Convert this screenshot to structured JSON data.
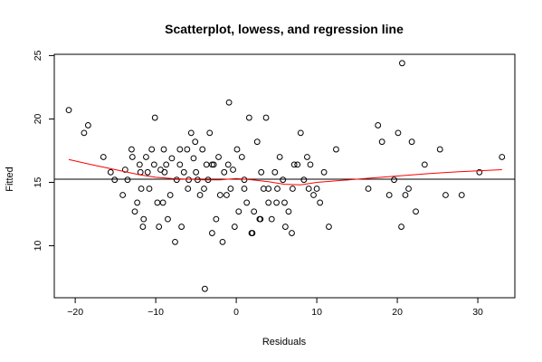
{
  "chart_data": {
    "type": "scatter",
    "title": "Scatterplot, lowess, and regression line",
    "xlabel": "Residuals",
    "ylabel": "Fitted",
    "xlim": [
      -22.6,
      34.6
    ],
    "ylim": [
      5.9,
      25.1
    ],
    "xticks": [
      -20,
      -10,
      0,
      10,
      20,
      30
    ],
    "yticks": [
      10,
      15,
      20,
      25
    ],
    "xtick_labels": [
      "−20",
      "−10",
      "0",
      "10",
      "20",
      "30"
    ],
    "ytick_labels": [
      "10",
      "15",
      "20",
      "25"
    ],
    "grid": false,
    "regression_line": {
      "y": 15.25,
      "color": "#000000"
    },
    "lowess": {
      "color": "#ff0000",
      "x": [
        -20.8,
        -18,
        -15,
        -12,
        -10,
        -8,
        -6,
        -4,
        -2,
        0,
        2,
        4,
        6,
        8,
        10,
        13,
        16,
        20,
        24,
        28,
        33
      ],
      "y": [
        16.8,
        16.4,
        16.0,
        15.6,
        15.4,
        15.3,
        15.25,
        15.2,
        15.2,
        15.3,
        15.2,
        15.05,
        14.85,
        14.8,
        15.0,
        15.15,
        15.3,
        15.5,
        15.7,
        15.85,
        16.0
      ]
    },
    "points": {
      "x": [
        -20.8,
        -18.9,
        -18.4,
        -16.5,
        -15.6,
        -15.1,
        -13.8,
        -13.5,
        -12.9,
        -12.6,
        -12.3,
        -11.9,
        -11.8,
        -11.6,
        -11.5,
        -11.2,
        -10.8,
        -10.5,
        -10.2,
        -10.1,
        -9.8,
        -9.6,
        -9.4,
        -9.1,
        -8.9,
        -8.7,
        -8.5,
        -8.2,
        -8.0,
        -7.6,
        -7.4,
        -7.0,
        -6.8,
        -6.5,
        -6.1,
        -5.9,
        -5.6,
        -5.3,
        -5.1,
        -4.8,
        -4.5,
        -4.2,
        -3.9,
        -3.7,
        -3.5,
        -3.3,
        -3.0,
        -2.8,
        -2.5,
        -2.2,
        -2.0,
        -1.7,
        -1.5,
        -1.2,
        -0.9,
        -0.7,
        -0.4,
        -0.2,
        0.1,
        0.3,
        0.7,
        1.0,
        1.3,
        1.6,
        1.9,
        2.2,
        2.6,
        2.9,
        3.1,
        3.4,
        3.7,
        4.0,
        4.4,
        4.8,
        5.1,
        5.4,
        5.8,
        6.1,
        6.5,
        6.9,
        7.2,
        7.6,
        8.0,
        8.4,
        8.8,
        9.2,
        9.6,
        10.0,
        10.4,
        10.9,
        11.5,
        12.4,
        16.4,
        17.6,
        18.1,
        19.0,
        19.6,
        20.1,
        20.5,
        20.6,
        21.0,
        21.4,
        21.8,
        22.3,
        23.4,
        25.3,
        26.0,
        28.0,
        30.2,
        33.0,
        -14.1,
        -13.0,
        -12.0,
        -11.0,
        -9.0,
        -7.0,
        -5.0,
        -3.0,
        -1.0,
        1.0,
        3.0,
        5.0,
        7.0,
        9.0,
        2.0,
        6.0,
        -4.0,
        -6.0,
        4.0
      ],
      "y": [
        20.7,
        18.9,
        19.5,
        17.0,
        15.8,
        15.2,
        16.0,
        15.2,
        17.0,
        12.7,
        13.4,
        15.8,
        14.5,
        11.5,
        12.1,
        17.0,
        14.5,
        17.6,
        16.4,
        20.1,
        13.4,
        11.5,
        16.0,
        13.4,
        15.8,
        16.4,
        12.1,
        14.0,
        16.9,
        10.3,
        15.2,
        17.6,
        11.5,
        15.8,
        17.6,
        15.2,
        18.9,
        16.9,
        18.2,
        15.2,
        14.0,
        17.6,
        6.6,
        16.4,
        15.2,
        18.9,
        11.0,
        16.4,
        12.1,
        17.0,
        14.0,
        10.3,
        15.8,
        14.0,
        21.3,
        14.5,
        16.0,
        11.5,
        17.6,
        12.7,
        17.0,
        15.2,
        13.4,
        20.1,
        11.0,
        12.7,
        18.2,
        12.1,
        15.8,
        14.5,
        20.1,
        13.4,
        12.1,
        15.8,
        14.5,
        17.0,
        15.2,
        11.5,
        12.7,
        11.0,
        16.4,
        16.4,
        18.9,
        15.2,
        17.0,
        16.4,
        14.0,
        14.5,
        13.4,
        15.8,
        11.5,
        17.6,
        14.5,
        19.5,
        18.2,
        14.0,
        15.2,
        18.9,
        11.5,
        24.4,
        14.0,
        14.5,
        18.2,
        12.7,
        16.4,
        17.6,
        14.0,
        14.0,
        15.8,
        17.0,
        14.0,
        17.6,
        16.4,
        15.8,
        17.6,
        16.4,
        15.8,
        16.4,
        16.4,
        14.5,
        12.1,
        13.4,
        14.5,
        14.5,
        11.0,
        13.4,
        14.5,
        14.5,
        14.5
      ]
    }
  }
}
